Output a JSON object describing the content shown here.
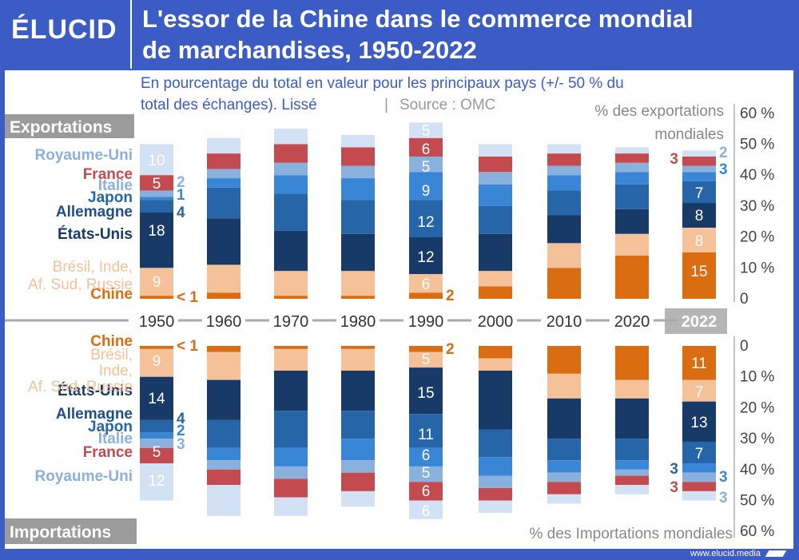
{
  "header": {
    "logo": "ÉLUCID",
    "title_line1": "L'essor de la Chine dans le commerce mondial",
    "title_line2": "de marchandises, 1950-2022"
  },
  "footer": {
    "url": "www.elucid.media"
  },
  "colors": {
    "royaume_uni": "#d3e1f4",
    "france": "#c34a4e",
    "italie": "#8ab0dd",
    "japon": "#3a86d6",
    "allemagne": "#2565a8",
    "etats_unis": "#183a68",
    "brics": "#f4c199",
    "chine": "#da6c12",
    "header_bg": "#3a5cc4"
  },
  "chart_data": {
    "type": "bar",
    "title": "L'essor de la Chine dans le commerce mondial de marchandises, 1950-2022",
    "subtitle_line1": "En pourcentage du total en valeur pour les principaux pays (+/- 50 % du",
    "subtitle_line2": "total des échanges). Lissé",
    "source": "Source : OMC",
    "categories": [
      "1950",
      "1960",
      "1970",
      "1980",
      "1990",
      "2000",
      "2010",
      "2020",
      "2022"
    ],
    "export_label": "Exportations",
    "import_label": "Importations",
    "export_axis_label_line1": "% des exportations",
    "export_axis_label_line2": "mondiales",
    "import_axis_label": "% des Importations mondiales",
    "export_ticks": [
      "0",
      "10 %",
      "20 %",
      "30 %",
      "40 %",
      "50 %",
      "60 %"
    ],
    "import_ticks": [
      "0",
      "10 %",
      "20 %",
      "30 %",
      "40 %",
      "50 %",
      "60 %"
    ],
    "ylim": [
      0,
      60
    ],
    "series": [
      {
        "key": "chine",
        "name": "Chine",
        "exports": [
          1,
          2,
          1,
          1,
          2,
          4,
          10,
          14,
          15
        ],
        "imports": [
          1,
          2,
          1,
          1,
          2,
          4,
          9,
          11,
          11
        ]
      },
      {
        "key": "brics",
        "name": "Brésil, Inde, Af. Sud, Russie",
        "exports": [
          9,
          9,
          8,
          8,
          6,
          5,
          8,
          7,
          8
        ],
        "imports": [
          9,
          9,
          7,
          7,
          5,
          4,
          8,
          6,
          7
        ]
      },
      {
        "key": "etats_unis",
        "name": "États-Unis",
        "exports": [
          18,
          15,
          13,
          12,
          12,
          12,
          9,
          8,
          8
        ],
        "imports": [
          14,
          13,
          13,
          13,
          15,
          19,
          13,
          13,
          13
        ]
      },
      {
        "key": "allemagne",
        "name": "Allemagne",
        "exports": [
          4,
          10,
          12,
          11,
          12,
          9,
          8,
          8,
          7
        ],
        "imports": [
          4,
          9,
          12,
          9,
          11,
          9,
          7,
          7,
          7
        ]
      },
      {
        "key": "japon",
        "name": "Japon",
        "exports": [
          1,
          3,
          6,
          7,
          9,
          7,
          5,
          4,
          3
        ],
        "imports": [
          2,
          4,
          6,
          7,
          6,
          6,
          4,
          3,
          3
        ]
      },
      {
        "key": "italie",
        "name": "Italie",
        "exports": [
          2,
          3,
          4,
          4,
          5,
          4,
          3,
          3,
          2
        ],
        "imports": [
          3,
          3,
          4,
          4,
          5,
          4,
          3,
          2,
          3
        ]
      },
      {
        "key": "france",
        "name": "France",
        "exports": [
          5,
          5,
          6,
          6,
          6,
          5,
          4,
          3,
          3
        ],
        "imports": [
          5,
          5,
          6,
          6,
          6,
          4,
          4,
          3,
          3
        ]
      },
      {
        "key": "royaume_uni",
        "name": "Royaume-Uni",
        "exports": [
          10,
          5,
          5,
          4,
          5,
          4,
          3,
          2,
          2
        ],
        "imports": [
          12,
          10,
          6,
          5,
          6,
          4,
          3,
          3,
          3
        ]
      }
    ],
    "export_value_labels": [
      {
        "bar": "1950",
        "inside": [
          "10",
          "5",
          "18",
          "9"
        ]
      },
      {
        "bar": "1950",
        "outside": [
          "2",
          "1",
          "4",
          "< 1"
        ]
      },
      {
        "bar": "1990",
        "inside": [
          "5",
          "6",
          "5",
          "9",
          "12",
          "12",
          "6"
        ],
        "outside": [
          "2"
        ]
      },
      {
        "bar": "2022",
        "inside": [
          "7",
          "8",
          "8",
          "15"
        ],
        "outside": [
          "3",
          "2",
          "3"
        ]
      }
    ],
    "import_value_labels": [
      {
        "bar": "1950",
        "inside": [
          "9",
          "14",
          "5",
          "12"
        ],
        "outside": [
          "< 1",
          "4",
          "2",
          "3"
        ]
      },
      {
        "bar": "1990",
        "inside": [
          "5",
          "15",
          "11",
          "6",
          "5",
          "6",
          "6"
        ],
        "outside": [
          "2"
        ]
      },
      {
        "bar": "2022",
        "inside": [
          "11",
          "7",
          "13",
          "7"
        ],
        "outside": [
          "3",
          "3",
          "3",
          "3"
        ]
      }
    ]
  }
}
